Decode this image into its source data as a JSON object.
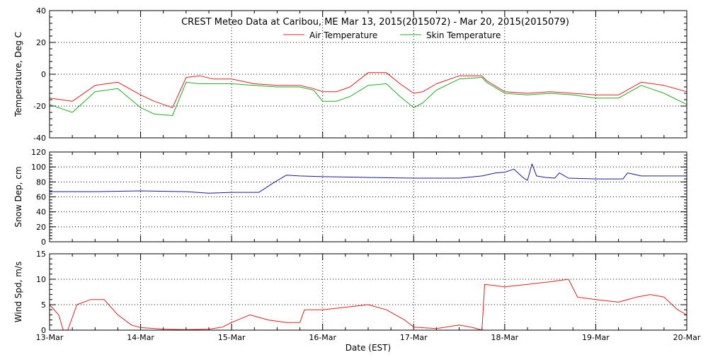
{
  "chart_data": [
    {
      "type": "line",
      "title": "CREST Meteo Data at Caribou, ME   Mar 13, 2015(2015072) - Mar 20, 2015(2015079)",
      "ylabel": "Temperature, Deg C",
      "ylim": [
        -40,
        40
      ],
      "yticks": [
        -40,
        -20,
        0,
        20,
        40
      ],
      "legend_placement": "top-center",
      "grid": true,
      "x": [
        13.0,
        13.25,
        13.5,
        13.75,
        14.0,
        14.15,
        14.35,
        14.5,
        14.65,
        14.8,
        15.0,
        15.25,
        15.5,
        15.75,
        15.9,
        16.0,
        16.15,
        16.3,
        16.5,
        16.7,
        16.85,
        17.0,
        17.1,
        17.25,
        17.5,
        17.75,
        17.8,
        18.0,
        18.25,
        18.5,
        18.75,
        19.0,
        19.25,
        19.5,
        19.75,
        20.0
      ],
      "series": [
        {
          "name": "Air Temperature",
          "color": "#e02020",
          "values": [
            -15,
            -17,
            -7,
            -5,
            -13,
            -17,
            -21,
            -2,
            -1,
            -3,
            -3,
            -6,
            -7,
            -7,
            -9,
            -11,
            -11,
            -8,
            1,
            1,
            -6,
            -12,
            -11,
            -6,
            -1,
            -1,
            -4,
            -11,
            -12,
            -11,
            -12,
            -13,
            -13,
            -5,
            -7,
            -11
          ]
        },
        {
          "name": "Skin Temperature",
          "color": "#20b020",
          "values": [
            -19,
            -24,
            -11,
            -9,
            -21,
            -25,
            -26,
            -5,
            -6,
            -6,
            -6,
            -7,
            -8,
            -8,
            -10,
            -17,
            -17,
            -14,
            -7,
            -6,
            -14,
            -21,
            -18,
            -10,
            -3,
            -2,
            -5,
            -12,
            -13,
            -12,
            -13,
            -15,
            -15,
            -7,
            -12,
            -19
          ]
        }
      ]
    },
    {
      "type": "line",
      "ylabel": "Snow Dep, cm",
      "ylim": [
        0,
        120
      ],
      "yticks": [
        0,
        20,
        40,
        60,
        80,
        100,
        120
      ],
      "grid": true,
      "x": [
        13.0,
        13.5,
        14.0,
        14.5,
        14.75,
        15.0,
        15.3,
        15.45,
        15.6,
        15.75,
        16.0,
        16.5,
        17.0,
        17.5,
        17.75,
        17.9,
        18.0,
        18.1,
        18.2,
        18.25,
        18.3,
        18.35,
        18.45,
        18.55,
        18.6,
        18.7,
        19.0,
        19.3,
        19.35,
        19.5,
        20.0
      ],
      "series": [
        {
          "name": "",
          "color": "#1a1a9a",
          "values": [
            67,
            67,
            68,
            67,
            65,
            66,
            66,
            78,
            89,
            88,
            87,
            86,
            85,
            85,
            88,
            92,
            93,
            97,
            86,
            82,
            104,
            88,
            86,
            85,
            92,
            85,
            84,
            84,
            92,
            88,
            88
          ]
        }
      ]
    },
    {
      "type": "line",
      "ylabel": "Wind Spd, m/s",
      "xlabel": "Date (EST)",
      "ylim": [
        0,
        15
      ],
      "yticks": [
        0,
        5,
        10,
        15
      ],
      "grid": true,
      "xlim": [
        13,
        20
      ],
      "xticks": [
        13,
        14,
        15,
        16,
        17,
        18,
        19,
        20
      ],
      "xtick_labels": [
        "13-Mar",
        "14-Mar",
        "15-Mar",
        "16-Mar",
        "17-Mar",
        "18-Mar",
        "19-Mar",
        "20-Mar"
      ],
      "x": [
        13.0,
        13.1,
        13.15,
        13.2,
        13.3,
        13.45,
        13.6,
        13.75,
        13.9,
        14.0,
        14.25,
        14.5,
        14.75,
        14.9,
        15.0,
        15.2,
        15.4,
        15.6,
        15.75,
        15.8,
        16.0,
        16.25,
        16.5,
        16.7,
        16.9,
        17.0,
        17.25,
        17.5,
        17.65,
        17.75,
        17.78,
        18.0,
        18.25,
        18.5,
        18.7,
        18.8,
        19.0,
        19.25,
        19.45,
        19.6,
        19.75,
        19.9,
        20.0
      ],
      "series": [
        {
          "name": "",
          "color": "#dd2020",
          "values": [
            5,
            3,
            0,
            0,
            5,
            6,
            6,
            3,
            1,
            0.5,
            0.2,
            0.1,
            0.2,
            0.6,
            1.5,
            3,
            2,
            1.5,
            1.5,
            4,
            4,
            4.5,
            5,
            4,
            2,
            0.6,
            0.3,
            1,
            0.5,
            0,
            9,
            8.5,
            9,
            9.5,
            10,
            6.5,
            6,
            5.5,
            6.5,
            7,
            6.5,
            4,
            3
          ]
        }
      ]
    }
  ]
}
